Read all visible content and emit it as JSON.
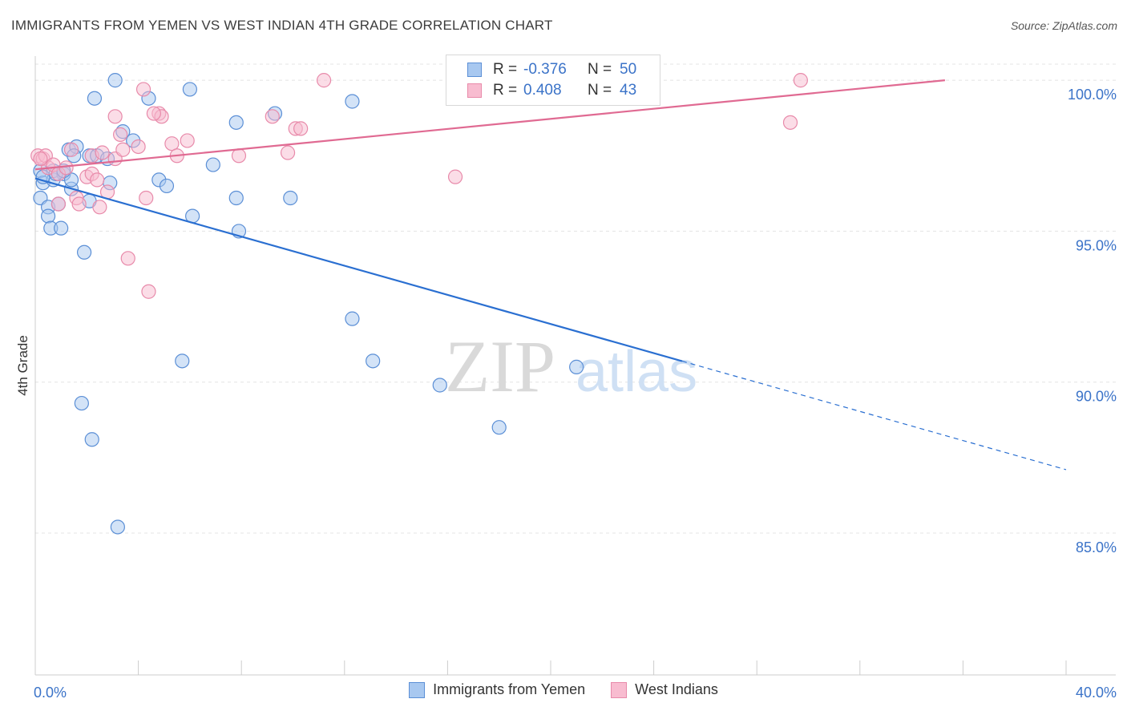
{
  "title": "IMMIGRANTS FROM YEMEN VS WEST INDIAN 4TH GRADE CORRELATION CHART",
  "source": "Source: ZipAtlas.com",
  "watermark": {
    "zip": "ZIP",
    "atlas": "atlas"
  },
  "legend": {
    "rows": [
      {
        "r_label": "R =",
        "r_value": "-0.376",
        "n_label": "N =",
        "n_value": "50",
        "color": "#a8c8f0",
        "border": "#5b8fd6"
      },
      {
        "r_label": "R =",
        "r_value": "0.408",
        "n_label": "N =",
        "n_value": "43",
        "color": "#f8bcd0",
        "border": "#e88aaa"
      }
    ]
  },
  "bottom_legend": [
    {
      "label": "Immigrants from Yemen",
      "color": "#a8c8f0",
      "border": "#5b8fd6"
    },
    {
      "label": "West Indians",
      "color": "#f8bcd0",
      "border": "#e88aaa"
    }
  ],
  "chart_data": {
    "type": "scatter",
    "ylabel": "4th Grade",
    "xlim": [
      0,
      40
    ],
    "ylim": [
      80.3,
      100.8
    ],
    "x_tick_labels": [
      {
        "value": 0,
        "label": "0.0%"
      },
      {
        "value": 40,
        "label": "40.0%"
      }
    ],
    "y_tick_labels": [
      {
        "value": 100,
        "label": "100.0%"
      },
      {
        "value": 95,
        "label": "95.0%"
      },
      {
        "value": 90,
        "label": "90.0%"
      },
      {
        "value": 85,
        "label": "85.0%"
      }
    ],
    "grid": true,
    "series": [
      {
        "name": "Immigrants from Yemen",
        "color": "#a8c8f0",
        "edge": "#5b8fd6",
        "trend": {
          "x0": 0,
          "y0": 96.75,
          "x_solid_end": 25.1,
          "x1": 40,
          "y1": 87.1,
          "color": "#2a6fd1"
        },
        "points": [
          [
            0.2,
            97.0
          ],
          [
            0.3,
            96.6
          ],
          [
            0.2,
            96.1
          ],
          [
            0.5,
            95.8
          ],
          [
            0.5,
            95.5
          ],
          [
            0.6,
            95.1
          ],
          [
            0.7,
            96.7
          ],
          [
            0.7,
            97.0
          ],
          [
            0.9,
            95.9
          ],
          [
            1.0,
            95.1
          ],
          [
            1.1,
            96.9
          ],
          [
            1.4,
            96.4
          ],
          [
            1.4,
            96.7
          ],
          [
            1.3,
            97.7
          ],
          [
            1.6,
            97.8
          ],
          [
            1.5,
            97.5
          ],
          [
            1.9,
            94.3
          ],
          [
            2.1,
            97.5
          ],
          [
            2.1,
            96.0
          ],
          [
            2.4,
            97.5
          ],
          [
            2.3,
            99.4
          ],
          [
            2.9,
            96.6
          ],
          [
            2.8,
            97.4
          ],
          [
            3.1,
            100.0
          ],
          [
            3.4,
            98.3
          ],
          [
            3.8,
            98.0
          ],
          [
            4.4,
            99.4
          ],
          [
            4.8,
            96.7
          ],
          [
            5.1,
            96.5
          ],
          [
            6.0,
            99.7
          ],
          [
            6.1,
            95.5
          ],
          [
            6.9,
            97.2
          ],
          [
            7.8,
            98.6
          ],
          [
            7.8,
            96.1
          ],
          [
            7.9,
            95.0
          ],
          [
            9.3,
            98.9
          ],
          [
            9.9,
            96.1
          ],
          [
            12.3,
            99.3
          ],
          [
            12.3,
            92.1
          ],
          [
            13.1,
            90.7
          ],
          [
            15.7,
            89.9
          ],
          [
            18.0,
            88.5
          ],
          [
            21.0,
            90.5
          ],
          [
            5.7,
            90.7
          ],
          [
            1.8,
            89.3
          ],
          [
            2.2,
            88.1
          ],
          [
            3.2,
            85.2
          ],
          [
            0.3,
            96.8
          ],
          [
            0.8,
            96.9
          ],
          [
            1.1,
            97.0
          ]
        ]
      },
      {
        "name": "West Indians",
        "color": "#f8bcd0",
        "edge": "#e88aaa",
        "trend": {
          "x0": 0,
          "y0": 97.05,
          "x1": 35.3,
          "y1": 100.0,
          "color": "#e06a92"
        },
        "points": [
          [
            0.1,
            97.5
          ],
          [
            0.3,
            97.4
          ],
          [
            0.4,
            97.5
          ],
          [
            0.5,
            97.1
          ],
          [
            0.7,
            97.2
          ],
          [
            0.9,
            96.9
          ],
          [
            0.9,
            95.9
          ],
          [
            1.2,
            97.1
          ],
          [
            1.4,
            97.7
          ],
          [
            1.6,
            96.1
          ],
          [
            1.7,
            95.9
          ],
          [
            2.0,
            96.8
          ],
          [
            2.2,
            97.5
          ],
          [
            2.2,
            96.9
          ],
          [
            2.4,
            96.7
          ],
          [
            2.5,
            95.8
          ],
          [
            2.6,
            97.6
          ],
          [
            2.8,
            96.3
          ],
          [
            3.1,
            97.4
          ],
          [
            3.1,
            98.8
          ],
          [
            3.3,
            98.2
          ],
          [
            3.4,
            97.7
          ],
          [
            3.6,
            94.1
          ],
          [
            4.0,
            97.8
          ],
          [
            4.3,
            96.1
          ],
          [
            4.4,
            93.0
          ],
          [
            4.2,
            99.7
          ],
          [
            4.8,
            98.9
          ],
          [
            4.9,
            98.8
          ],
          [
            5.3,
            97.9
          ],
          [
            5.5,
            97.5
          ],
          [
            5.9,
            98.0
          ],
          [
            7.9,
            97.5
          ],
          [
            9.2,
            98.8
          ],
          [
            9.8,
            97.6
          ],
          [
            10.1,
            98.4
          ],
          [
            10.3,
            98.4
          ],
          [
            11.2,
            100.0
          ],
          [
            16.3,
            96.8
          ],
          [
            29.7,
            100.0
          ],
          [
            29.3,
            98.6
          ],
          [
            0.2,
            97.4
          ],
          [
            4.6,
            98.9
          ]
        ]
      }
    ]
  }
}
